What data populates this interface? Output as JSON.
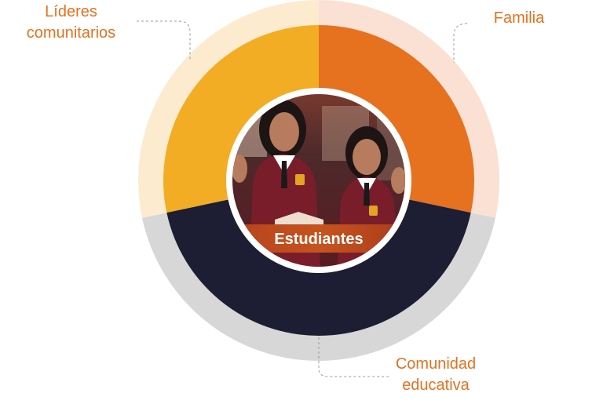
{
  "colors": {
    "lideres": "#f2ad24",
    "lideres_ring": "#fdebd0",
    "familia": "#e6711f",
    "familia_ring": "#fae1d3",
    "comunidad": "#1d1d33",
    "comunidad_ring": "#d7d7d7",
    "label_text": "#e2721f",
    "connector": "#9a9a9a"
  },
  "segments": [
    {
      "id": "lideres",
      "label_lines": [
        "Líderes",
        "comunitarios"
      ]
    },
    {
      "id": "familia",
      "label_lines": [
        "Familia"
      ]
    },
    {
      "id": "comunidad",
      "label_lines": [
        "Comunidad",
        "educativa"
      ]
    }
  ],
  "center": {
    "label": "Estudiantes",
    "photo": "students-photo"
  }
}
